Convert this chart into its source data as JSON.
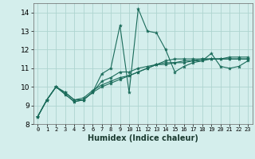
{
  "xlabel": "Humidex (Indice chaleur)",
  "ylabel": "",
  "bg_color": "#d4eeec",
  "grid_color": "#aed4d0",
  "line_color": "#1a6b5a",
  "xlim": [
    -0.5,
    23.5
  ],
  "ylim": [
    8,
    14.5
  ],
  "yticks": [
    8,
    9,
    10,
    11,
    12,
    13,
    14
  ],
  "xticks": [
    0,
    1,
    2,
    3,
    4,
    5,
    6,
    7,
    8,
    9,
    10,
    11,
    12,
    13,
    14,
    15,
    16,
    17,
    18,
    19,
    20,
    21,
    22,
    23
  ],
  "series": [
    [
      8.4,
      9.3,
      10.0,
      9.6,
      9.2,
      9.3,
      9.7,
      10.7,
      11.0,
      13.3,
      9.7,
      14.2,
      13.0,
      12.9,
      12.0,
      10.8,
      11.1,
      11.3,
      11.4,
      11.8,
      11.1,
      11.0,
      11.1,
      11.4
    ],
    [
      8.4,
      9.3,
      10.0,
      9.6,
      9.2,
      9.3,
      9.7,
      10.3,
      10.5,
      10.8,
      10.8,
      11.0,
      11.1,
      11.2,
      11.2,
      11.3,
      11.3,
      11.4,
      11.4,
      11.5,
      11.5,
      11.5,
      11.5,
      11.5
    ],
    [
      8.4,
      9.3,
      10.0,
      9.7,
      9.3,
      9.4,
      9.8,
      10.1,
      10.3,
      10.5,
      10.6,
      10.8,
      11.0,
      11.2,
      11.3,
      11.3,
      11.4,
      11.4,
      11.5,
      11.5,
      11.5,
      11.6,
      11.6,
      11.6
    ],
    [
      8.4,
      9.3,
      10.0,
      9.7,
      9.3,
      9.3,
      9.7,
      10.0,
      10.2,
      10.4,
      10.6,
      10.8,
      11.0,
      11.2,
      11.4,
      11.5,
      11.5,
      11.5,
      11.5,
      11.5,
      11.5,
      11.5,
      11.5,
      11.5
    ]
  ]
}
